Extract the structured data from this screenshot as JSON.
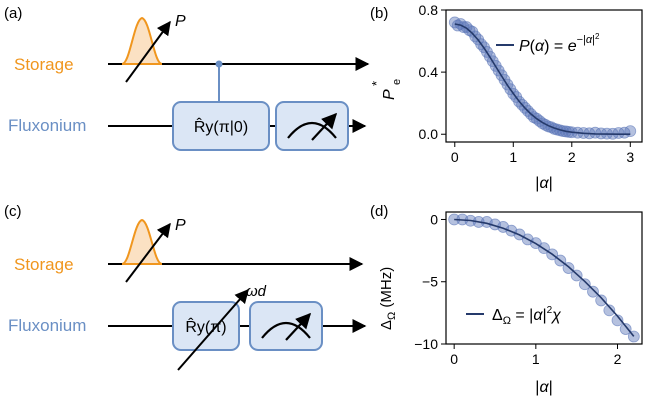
{
  "colors": {
    "storage": "#f0961e",
    "storage_fill": "#fbe1c3",
    "fluxonium": "#6a8fc4",
    "box_fill": "#dbe6f5",
    "box_stroke": "#6a8fc4",
    "marker": "#5b76b8",
    "fit": "#253a6b"
  },
  "panels": {
    "a": {
      "label": "(a)",
      "storage_label": "Storage",
      "fluxonium_label": "Fluxonium",
      "pulse_label": "P",
      "gate_label": "R̂y(π|0)"
    },
    "b": {
      "label": "(b)"
    },
    "c": {
      "label": "(c)",
      "storage_label": "Storage",
      "fluxonium_label": "Fluxonium",
      "pulse_label": "P",
      "gate_label": "R̂y(π)",
      "drive_label": "ωd"
    },
    "d": {
      "label": "(d)"
    }
  },
  "chart_data": [
    {
      "panel": "b",
      "type": "scatter",
      "xlabel": "|α|",
      "ylabel": "P*e",
      "xlim": [
        -0.15,
        3.2
      ],
      "ylim": [
        -0.05,
        0.8
      ],
      "xticks": [
        "0",
        "1",
        "2",
        "3"
      ],
      "yticks": [
        "0.0",
        "0.4",
        "0.8"
      ],
      "legend": "P(α) = e^{−|α|²}",
      "legend_placement": "top-right",
      "grid": false,
      "series": [
        {
          "kind": "markers",
          "x": [
            0.0,
            0.05,
            0.1,
            0.15,
            0.2,
            0.25,
            0.3,
            0.35,
            0.4,
            0.45,
            0.5,
            0.55,
            0.6,
            0.65,
            0.7,
            0.75,
            0.8,
            0.85,
            0.9,
            0.95,
            1.0,
            1.05,
            1.1,
            1.15,
            1.2,
            1.25,
            1.3,
            1.35,
            1.4,
            1.45,
            1.5,
            1.55,
            1.6,
            1.65,
            1.7,
            1.75,
            1.8,
            1.85,
            1.9,
            1.95,
            2.0,
            2.1,
            2.2,
            2.3,
            2.4,
            2.5,
            2.6,
            2.7,
            2.8,
            2.9,
            3.0
          ],
          "y": [
            0.72,
            0.7,
            0.71,
            0.69,
            0.69,
            0.67,
            0.66,
            0.63,
            0.61,
            0.58,
            0.56,
            0.53,
            0.5,
            0.47,
            0.44,
            0.41,
            0.38,
            0.35,
            0.32,
            0.29,
            0.26,
            0.24,
            0.21,
            0.19,
            0.17,
            0.15,
            0.13,
            0.11,
            0.1,
            0.085,
            0.07,
            0.06,
            0.05,
            0.045,
            0.035,
            0.03,
            0.025,
            0.02,
            0.018,
            0.015,
            0.013,
            0.01,
            0.008,
            0.006,
            0.01,
            0.005,
            0.004,
            0.003,
            0.008,
            0.01,
            0.02
          ]
        },
        {
          "kind": "fit",
          "x": [
            0.0,
            0.1,
            0.2,
            0.3,
            0.4,
            0.5,
            0.6,
            0.7,
            0.8,
            0.9,
            1.0,
            1.1,
            1.2,
            1.3,
            1.4,
            1.5,
            1.6,
            1.7,
            1.8,
            1.9,
            2.0,
            2.2,
            2.4,
            2.6,
            2.8,
            3.0
          ],
          "y": [
            0.71,
            0.703,
            0.683,
            0.65,
            0.607,
            0.555,
            0.497,
            0.436,
            0.375,
            0.316,
            0.262,
            0.212,
            0.168,
            0.131,
            0.1,
            0.075,
            0.055,
            0.04,
            0.028,
            0.019,
            0.013,
            0.006,
            0.002,
            0.001,
            0.0,
            0.0
          ]
        }
      ]
    },
    {
      "panel": "d",
      "type": "scatter",
      "xlabel": "|α|",
      "ylabel": "ΔΩ (MHz)",
      "xlim": [
        -0.1,
        2.3
      ],
      "ylim": [
        -10,
        0.6
      ],
      "xticks": [
        "0",
        "1",
        "2"
      ],
      "yticks": [
        "0",
        "−5",
        "−10"
      ],
      "legend": "ΔΩ = |α|²χ",
      "legend_placement": "lower-left",
      "grid": false,
      "series": [
        {
          "kind": "markers",
          "x": [
            0.0,
            0.1,
            0.2,
            0.3,
            0.4,
            0.5,
            0.6,
            0.7,
            0.8,
            0.9,
            1.0,
            1.1,
            1.2,
            1.3,
            1.4,
            1.5,
            1.6,
            1.7,
            1.8,
            1.9,
            2.0,
            2.1,
            2.2
          ],
          "y": [
            0.0,
            0.0,
            -0.1,
            -0.2,
            -0.2,
            -0.4,
            -0.6,
            -0.9,
            -1.2,
            -1.6,
            -1.9,
            -2.3,
            -2.8,
            -3.3,
            -3.9,
            -4.5,
            -5.2,
            -5.8,
            -6.5,
            -7.3,
            -8.1,
            -8.8,
            -9.4
          ]
        },
        {
          "kind": "fit",
          "x": [
            0.0,
            0.2,
            0.4,
            0.6,
            0.8,
            1.0,
            1.2,
            1.4,
            1.6,
            1.8,
            2.0,
            2.2
          ],
          "y": [
            0.0,
            -0.08,
            -0.31,
            -0.7,
            -1.24,
            -1.94,
            -2.79,
            -3.8,
            -4.97,
            -6.29,
            -7.76,
            -9.39
          ]
        }
      ]
    }
  ]
}
